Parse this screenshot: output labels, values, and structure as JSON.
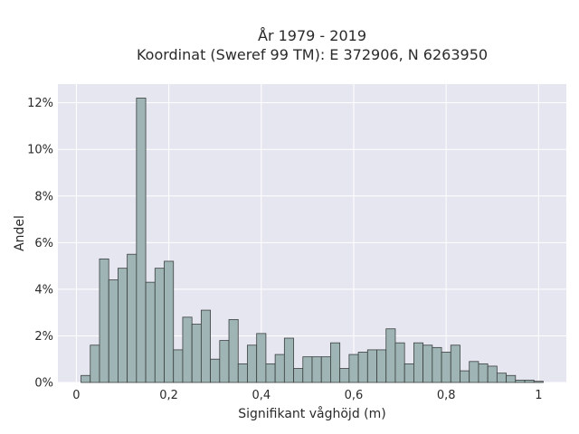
{
  "chart_data": {
    "type": "bar",
    "title": "År 1979 - 2019",
    "subtitle": "Koordinat (Sweref 99 TM): E 372906, N 6263950",
    "xlabel": "Signifikant våghöjd (m)",
    "ylabel": "Andel",
    "xlim": [
      -0.04,
      1.06
    ],
    "ylim": [
      0,
      12.8
    ],
    "x_ticks": [
      0,
      0.2,
      0.4,
      0.6,
      0.8,
      1
    ],
    "x_tick_labels": [
      "0",
      "0,2",
      "0,4",
      "0,6",
      "0,8",
      "1"
    ],
    "y_ticks": [
      0,
      2,
      4,
      6,
      8,
      10,
      12
    ],
    "y_tick_labels": [
      "0%",
      "2%",
      "4%",
      "6%",
      "8%",
      "10%",
      "12%"
    ],
    "grid": true,
    "bin_width": 0.02,
    "bin_starts": [
      0.01,
      0.03,
      0.05,
      0.07,
      0.09,
      0.11,
      0.13,
      0.15,
      0.17,
      0.19,
      0.21,
      0.23,
      0.25,
      0.27,
      0.29,
      0.31,
      0.33,
      0.35,
      0.37,
      0.39,
      0.41,
      0.43,
      0.45,
      0.47,
      0.49,
      0.51,
      0.53,
      0.55,
      0.57,
      0.59,
      0.61,
      0.63,
      0.65,
      0.67,
      0.69,
      0.71,
      0.73,
      0.75,
      0.77,
      0.79,
      0.81,
      0.83,
      0.85,
      0.87,
      0.89,
      0.91,
      0.93,
      0.95,
      0.97,
      0.99
    ],
    "values": [
      0.3,
      1.6,
      5.3,
      4.4,
      4.9,
      5.5,
      12.2,
      4.3,
      4.9,
      5.2,
      1.4,
      2.8,
      2.5,
      3.1,
      1.0,
      1.8,
      2.7,
      0.8,
      1.6,
      2.1,
      0.8,
      1.2,
      1.9,
      0.6,
      1.1,
      1.1,
      1.1,
      1.7,
      0.6,
      1.2,
      1.3,
      1.4,
      1.4,
      2.3,
      1.7,
      0.8,
      1.7,
      1.6,
      1.5,
      1.3,
      1.6,
      0.5,
      0.9,
      0.8,
      0.7,
      0.4,
      0.3,
      0.1,
      0.1,
      0.05
    ],
    "colors": {
      "plot_bg": "#e6e6f0",
      "bar_fill": "#9fb5b5",
      "bar_stroke": "#3a3f3f",
      "grid": "#ffffff"
    }
  }
}
